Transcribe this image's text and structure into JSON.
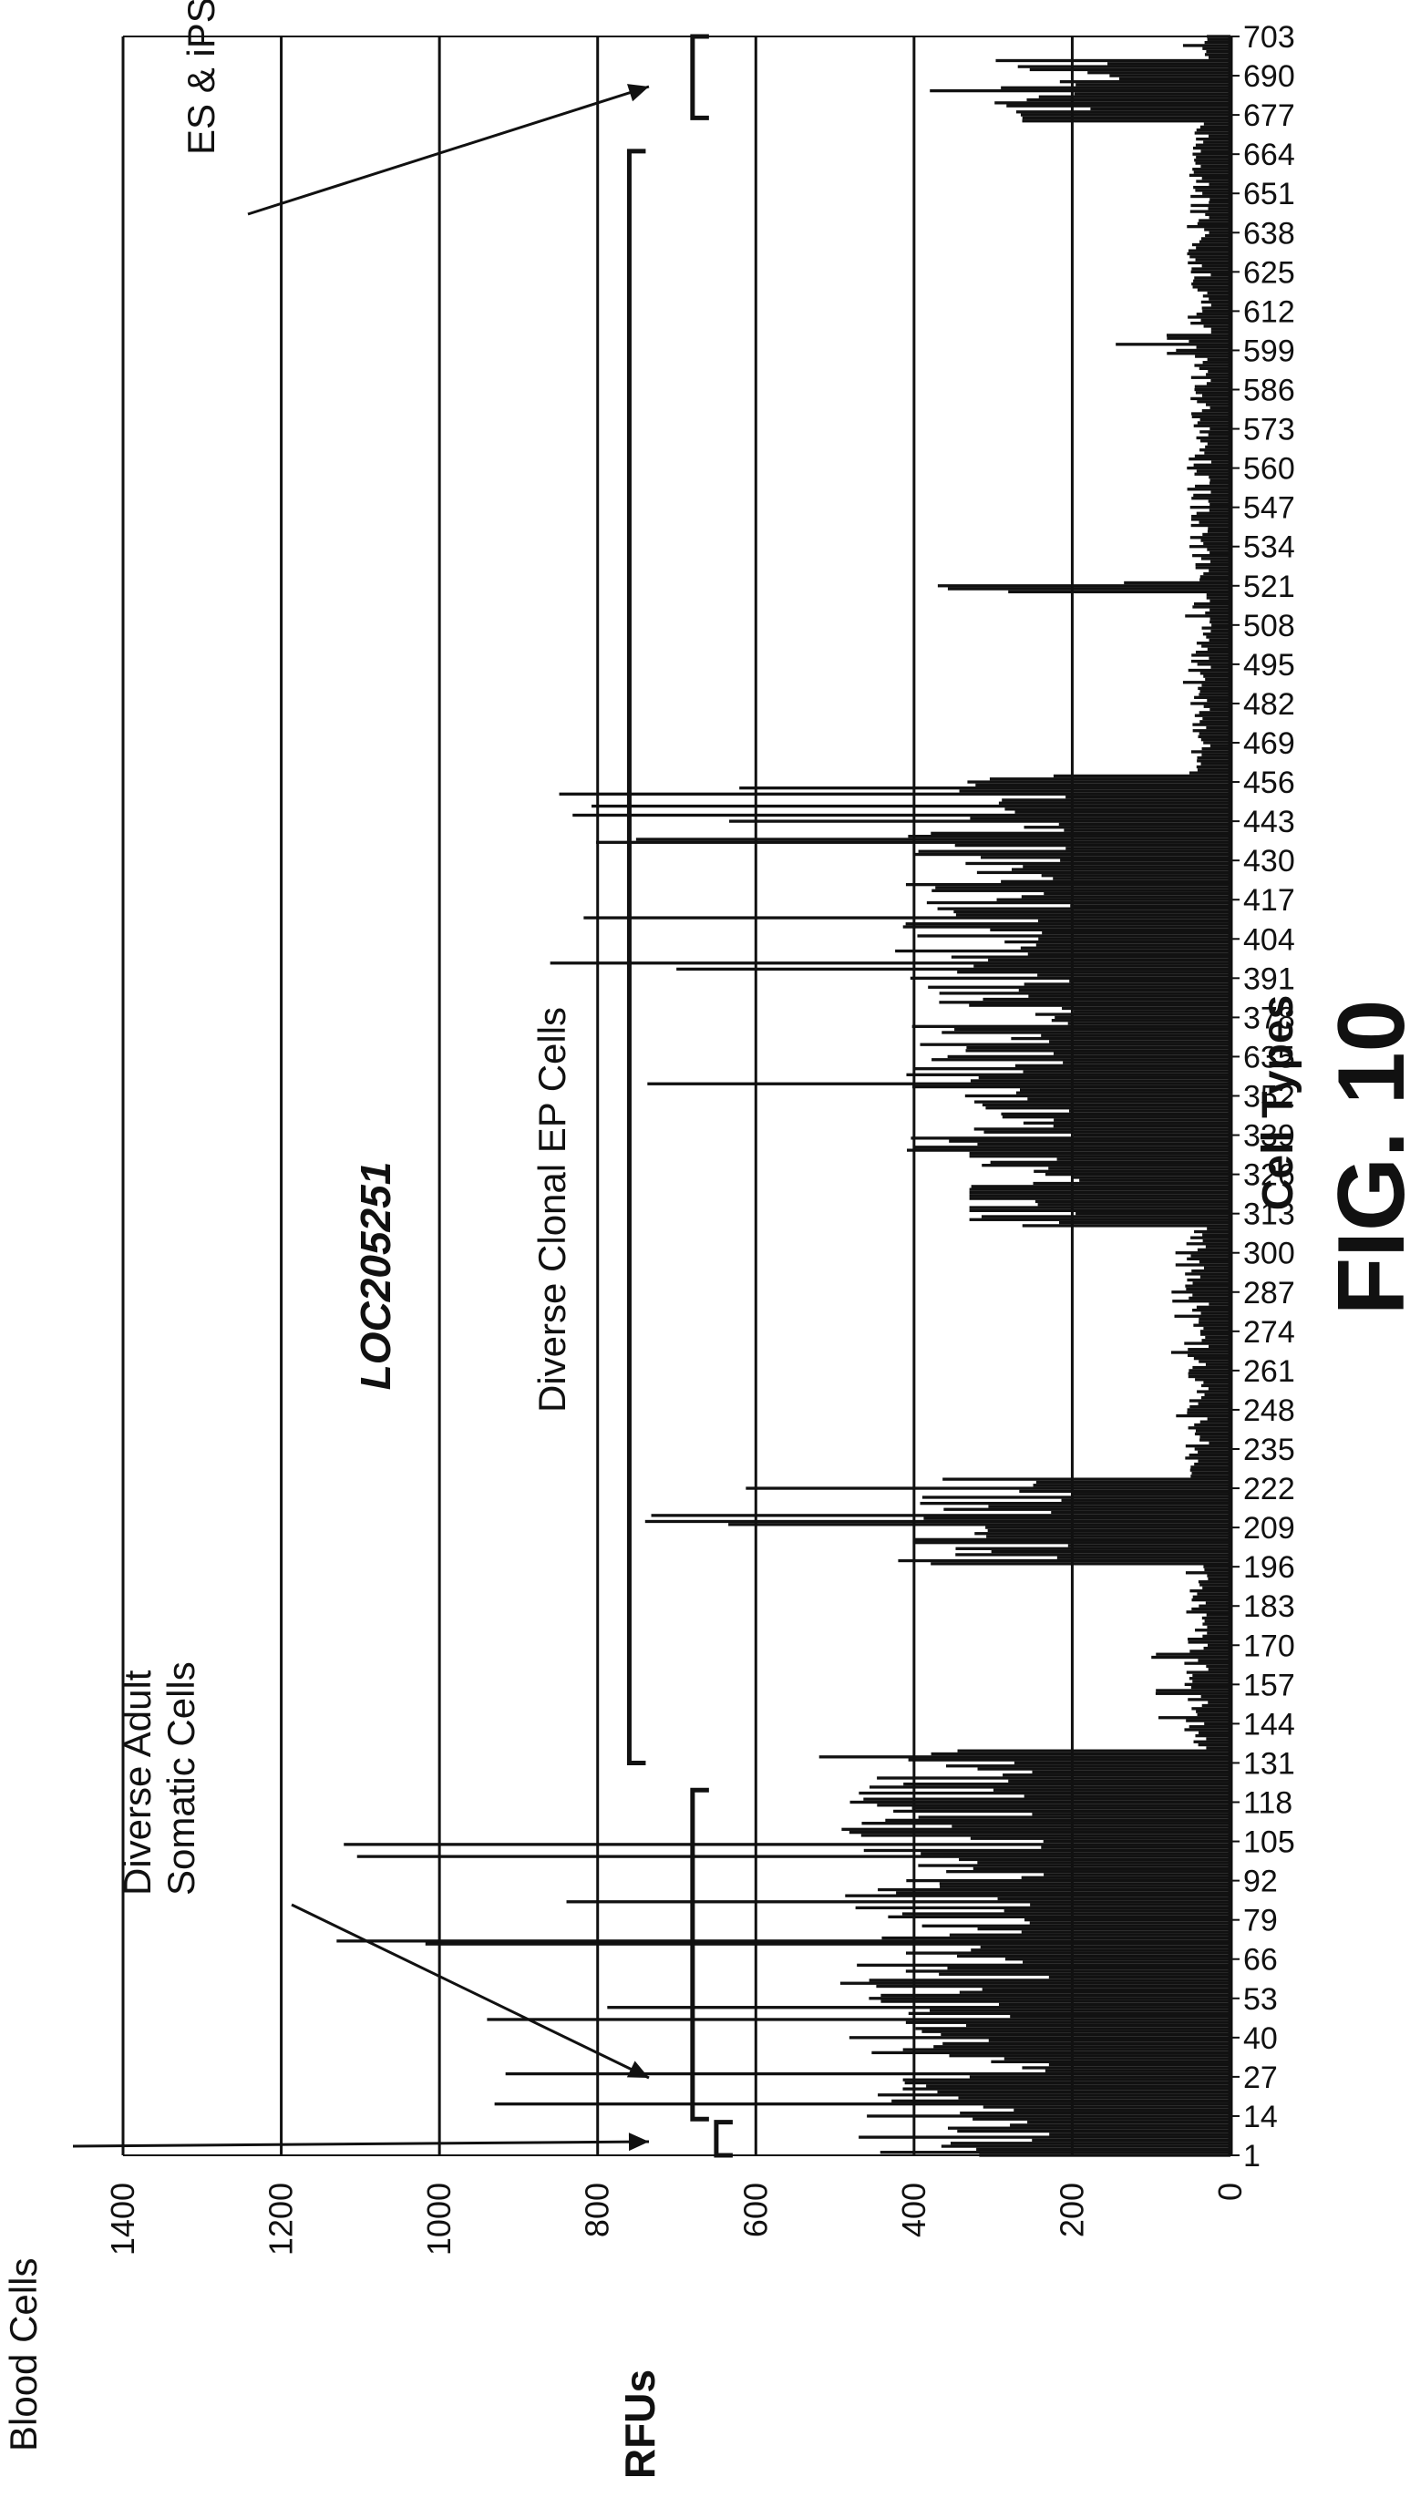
{
  "chart_data": {
    "type": "bar",
    "title": "LOC205251",
    "ylabel": "RFUs",
    "xlabel": "Cell Types",
    "ylim": [
      0,
      1400
    ],
    "yticks": [
      0,
      200,
      400,
      600,
      800,
      1000,
      1200,
      1400
    ],
    "grid": true,
    "orientation": "rotated-90",
    "x_tick_labels": [
      "1",
      "14",
      "27",
      "40",
      "53",
      "66",
      "79",
      "92",
      "105",
      "118",
      "131",
      "144",
      "157",
      "170",
      "183",
      "196",
      "209",
      "222",
      "235",
      "248",
      "261",
      "274",
      "287",
      "300",
      "313",
      "326",
      "339",
      "352",
      "635",
      "378",
      "391",
      "404",
      "417",
      "430",
      "443",
      "456",
      "469",
      "482",
      "495",
      "508",
      "521",
      "534",
      "547",
      "560",
      "573",
      "586",
      "599",
      "612",
      "625",
      "638",
      "651",
      "664",
      "677",
      "690",
      "703"
    ],
    "n_cell_types": 703,
    "values_profile": [
      {
        "from": 1,
        "to": 12,
        "typical": 300,
        "max": 470
      },
      {
        "from": 13,
        "to": 130,
        "typical": 380,
        "max": 1130
      },
      {
        "from": 131,
        "to": 135,
        "typical": 330,
        "max": 520
      },
      {
        "from": 136,
        "to": 196,
        "typical": 45,
        "max": 100
      },
      {
        "from": 197,
        "to": 225,
        "typical": 330,
        "max": 740
      },
      {
        "from": 226,
        "to": 308,
        "typical": 45,
        "max": 75
      },
      {
        "from": 309,
        "to": 333,
        "typical": 290,
        "max": 330
      },
      {
        "from": 334,
        "to": 458,
        "typical": 330,
        "max": 860
      },
      {
        "from": 459,
        "to": 518,
        "typical": 40,
        "max": 60
      },
      {
        "from": 519,
        "to": 522,
        "typical": 120,
        "max": 370
      },
      {
        "from": 523,
        "to": 596,
        "typical": 40,
        "max": 55
      },
      {
        "from": 597,
        "to": 604,
        "typical": 70,
        "max": 145
      },
      {
        "from": 605,
        "to": 674,
        "typical": 40,
        "max": 55
      },
      {
        "from": 675,
        "to": 695,
        "typical": 230,
        "max": 380
      },
      {
        "from": 696,
        "to": 703,
        "typical": 30,
        "max": 60
      }
    ],
    "annotations": [
      {
        "text": "Blood Cells",
        "lines": [
          "Blood Cells"
        ],
        "from": 1,
        "to": 12,
        "bracket_at": 650
      },
      {
        "text": "Diverse Adult Somatic Cells",
        "lines": [
          "Diverse Adult",
          "Somatic Cells"
        ],
        "from": 13,
        "to": 122,
        "bracket_at": 680
      },
      {
        "text": "Diverse Clonal EP Cells",
        "lines": [
          "Diverse Clonal EP Cells"
        ],
        "from": 131,
        "to": 665,
        "bracket_at": 760
      },
      {
        "text": "ES & iPS Cells",
        "lines": [
          "ES & iPS Cells"
        ],
        "from": 676,
        "to": 703,
        "bracket_at": 680
      }
    ]
  },
  "figure_label": "FIG. 10"
}
